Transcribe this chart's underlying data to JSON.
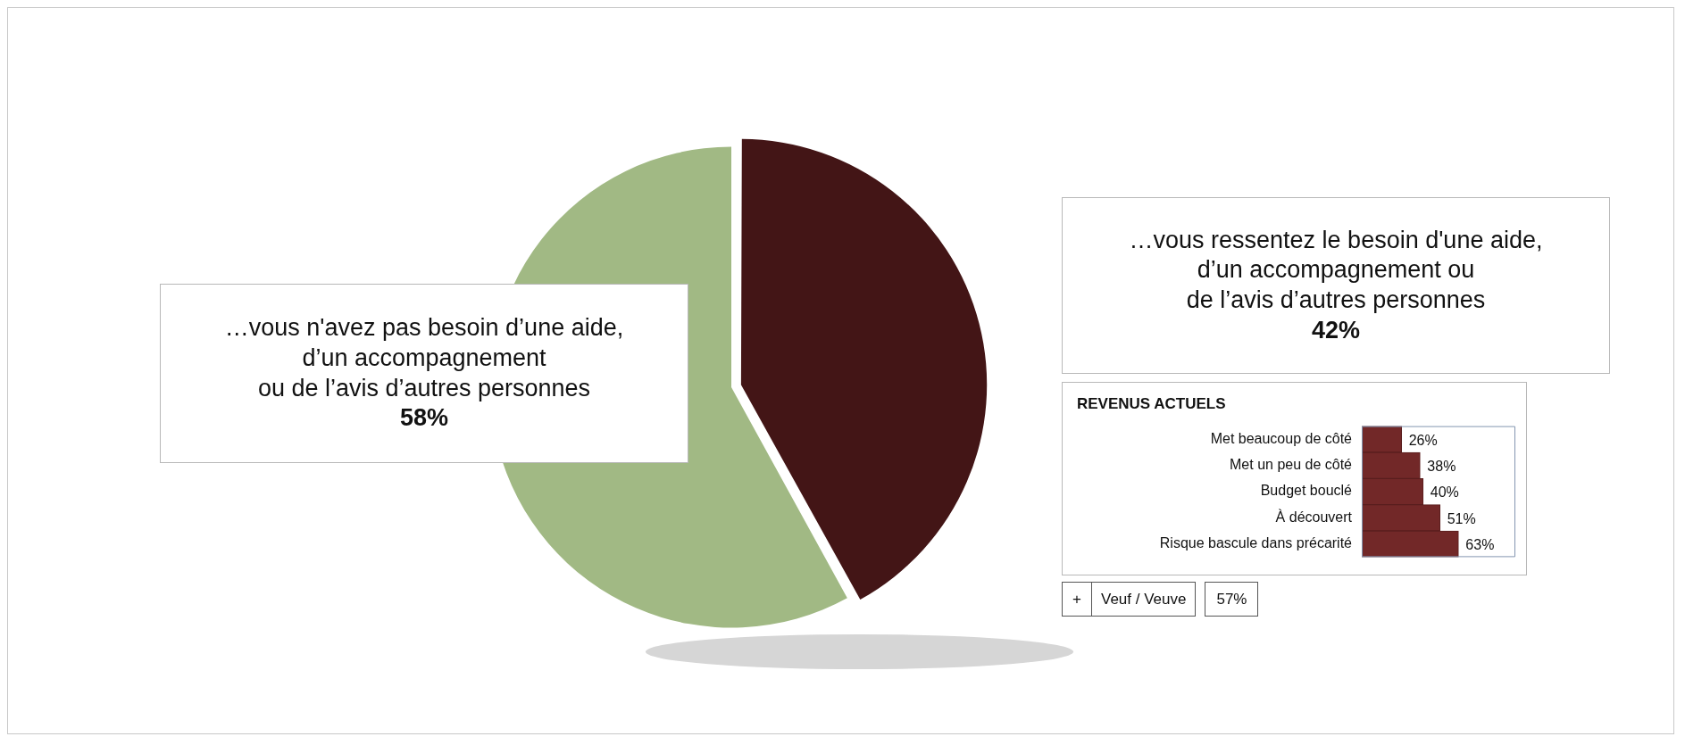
{
  "chart_data": [
    {
      "type": "pie",
      "categories": [
        "…vous ressentez le besoin d'une aide,\nd’un accompagnement ou\nde l’avis d’autres personnes",
        "…vous n'avez pas besoin d’une aide,\nd’un accompagnement\nou de l’avis d’autres personnes"
      ],
      "values": [
        42,
        58
      ],
      "colors": [
        "#431516",
        "#a1b984"
      ],
      "value_labels": [
        "42%",
        "58%"
      ],
      "legend": false
    },
    {
      "type": "bar",
      "orientation": "horizontal",
      "title": "REVENUS ACTUELS",
      "categories": [
        "Met beaucoup de côté",
        "Met un peu de côté",
        "Budget bouclé",
        "À découvert",
        "Risque bascule dans précarité"
      ],
      "values": [
        26,
        38,
        40,
        51,
        63
      ],
      "color": "#722828",
      "value_labels": [
        "26%",
        "38%",
        "40%",
        "51%",
        "63%"
      ],
      "xlim": [
        0,
        100
      ],
      "tick_labels": "y",
      "legend": false
    },
    {
      "type": "other",
      "annotations": [
        "+",
        "Veuf / Veuve",
        "57%"
      ]
    }
  ]
}
